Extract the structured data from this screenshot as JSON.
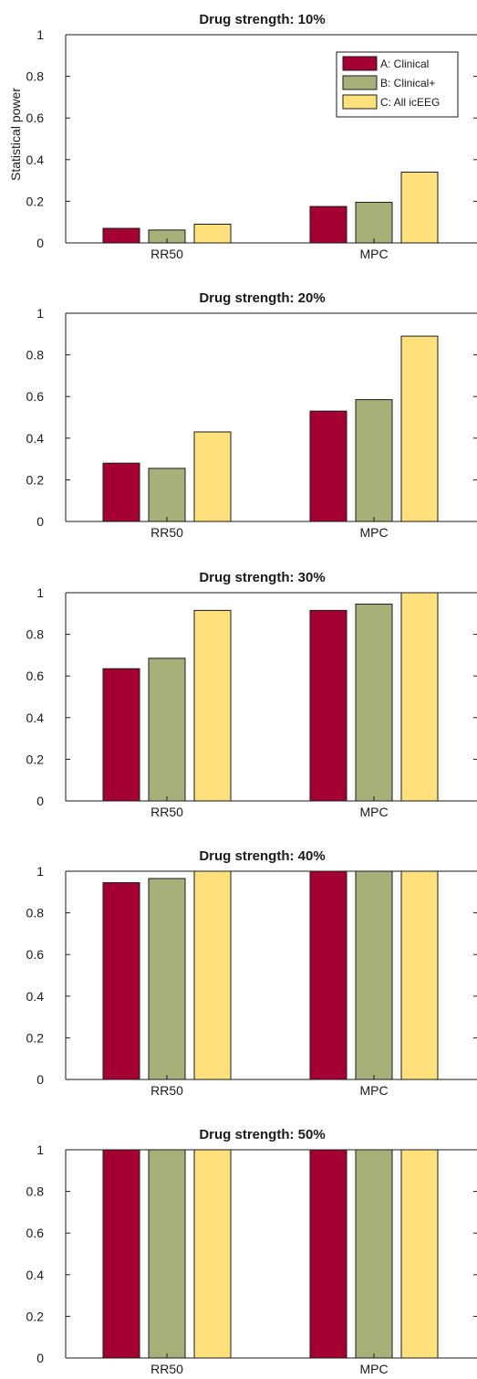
{
  "colors": {
    "A": "#a50034",
    "B": "#a8b07a",
    "C": "#ffe07a",
    "bar_outline": "#1a1a1a",
    "axis": "#1a1a1a"
  },
  "chart_data": [
    {
      "type": "bar",
      "title": "Drug strength: 10%",
      "ylabel": "Statistical power",
      "xlabel": "",
      "categories": [
        "RR50",
        "MPC"
      ],
      "ylim": [
        0,
        1
      ],
      "yticks": [
        "0",
        "0.2",
        "0.4",
        "0.6",
        "0.8",
        "1"
      ],
      "legend": "top-right",
      "series": [
        {
          "name": "A: Clinical",
          "values": [
            0.07,
            0.175
          ]
        },
        {
          "name": "B: Clinical+",
          "values": [
            0.062,
            0.195
          ]
        },
        {
          "name": "C: All icEEG",
          "values": [
            0.09,
            0.34
          ]
        }
      ]
    },
    {
      "type": "bar",
      "title": "Drug strength: 20%",
      "categories": [
        "RR50",
        "MPC"
      ],
      "ylim": [
        0,
        1
      ],
      "yticks": [
        "0",
        "0.2",
        "0.4",
        "0.6",
        "0.8",
        "1"
      ],
      "series": [
        {
          "values": [
            0.28,
            0.53
          ]
        },
        {
          "values": [
            0.255,
            0.585
          ]
        },
        {
          "values": [
            0.43,
            0.89
          ]
        }
      ]
    },
    {
      "type": "bar",
      "title": "Drug strength: 30%",
      "categories": [
        "RR50",
        "MPC"
      ],
      "ylim": [
        0,
        1
      ],
      "yticks": [
        "0",
        "0.2",
        "0.4",
        "0.6",
        "0.8",
        "1"
      ],
      "series": [
        {
          "values": [
            0.635,
            0.915
          ]
        },
        {
          "values": [
            0.685,
            0.945
          ]
        },
        {
          "values": [
            0.915,
            1.0
          ]
        }
      ]
    },
    {
      "type": "bar",
      "title": "Drug strength: 40%",
      "categories": [
        "RR50",
        "MPC"
      ],
      "ylim": [
        0,
        1
      ],
      "yticks": [
        "0",
        "0.2",
        "0.4",
        "0.6",
        "0.8",
        "1"
      ],
      "series": [
        {
          "values": [
            0.945,
            1.0
          ]
        },
        {
          "values": [
            0.965,
            1.0
          ]
        },
        {
          "values": [
            1.0,
            1.0
          ]
        }
      ]
    },
    {
      "type": "bar",
      "title": "Drug strength: 50%",
      "categories": [
        "RR50",
        "MPC"
      ],
      "ylim": [
        0,
        1
      ],
      "yticks": [
        "0",
        "0.2",
        "0.4",
        "0.6",
        "0.8",
        "1"
      ],
      "series": [
        {
          "values": [
            1.0,
            1.0
          ]
        },
        {
          "values": [
            1.0,
            1.0
          ]
        },
        {
          "values": [
            1.0,
            1.0
          ]
        }
      ]
    }
  ]
}
